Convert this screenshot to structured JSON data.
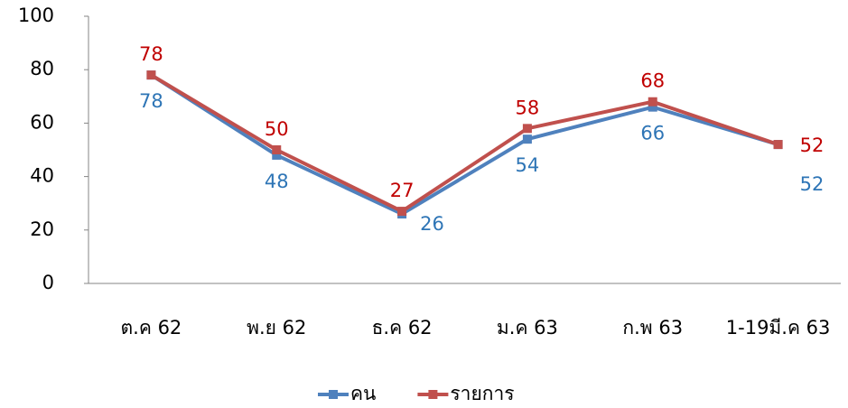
{
  "chart_data": {
    "type": "line",
    "categories": [
      "ต.ค 62",
      "พ.ย 62",
      "ธ.ค 62",
      "ม.ค 63",
      "ก.พ 63",
      "1-19มี.ค 63"
    ],
    "series": [
      {
        "name": "คน",
        "color": "#4f81bd",
        "values": [
          78,
          48,
          26,
          54,
          66,
          52
        ]
      },
      {
        "name": "รายการ",
        "color": "#c0504d",
        "values": [
          78,
          50,
          27,
          58,
          68,
          52
        ]
      }
    ],
    "label_colors": [
      "#2e75b6",
      "#c00000"
    ],
    "ylim": [
      0,
      100
    ],
    "yticks": [
      0,
      20,
      40,
      60,
      80,
      100
    ],
    "grid": false,
    "legend": "bottom"
  }
}
